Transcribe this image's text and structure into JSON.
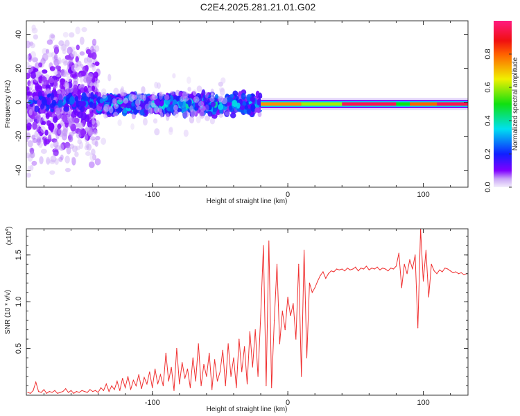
{
  "title": "C2E4.2025.281.21.01.G02",
  "chart_data": [
    {
      "type": "heatmap",
      "xlabel": "Height of straight line (km)",
      "ylabel": "Frequency (Hz)",
      "xlim": [
        -193,
        133
      ],
      "ylim": [
        -50,
        48
      ],
      "xticks": [
        -100,
        0,
        100
      ],
      "yticks": [
        -40,
        -20,
        0,
        20,
        40
      ],
      "colorbar": {
        "label": "Normalized spectral amplitude",
        "range": [
          0,
          1
        ],
        "ticks": [
          "0.0",
          "0.2",
          "0.4",
          "0.6",
          "0.8"
        ]
      },
      "regions": [
        {
          "x": [
            -193,
            -140
          ],
          "f_center": 0,
          "f_spread": 50,
          "amp": 0.1,
          "density": 700
        },
        {
          "x": [
            -190,
            -140
          ],
          "f_center": 0,
          "f_spread": 8,
          "amp": 0.22,
          "density": 160
        },
        {
          "x": [
            -140,
            -20
          ],
          "f_center": -1,
          "f_spread": 8,
          "amp": 0.3,
          "density": 900
        },
        {
          "x": [
            -140,
            -40
          ],
          "f_center": 0,
          "f_spread": 25,
          "amp": 0.05,
          "density": 80
        },
        {
          "x": [
            -20,
            133
          ],
          "f_center": -1,
          "f_spread": 1,
          "amp": 0.9,
          "density": 0
        }
      ],
      "ridge": {
        "freq": -1,
        "segments": [
          {
            "x": [
              -20,
              10
            ],
            "amp": 0.75
          },
          {
            "x": [
              10,
              40
            ],
            "amp": 0.6
          },
          {
            "x": [
              40,
              80
            ],
            "amp": 0.95
          },
          {
            "x": [
              80,
              90
            ],
            "amp": 0.5
          },
          {
            "x": [
              90,
              110
            ],
            "amp": 0.8
          },
          {
            "x": [
              110,
              133
            ],
            "amp": 0.95
          }
        ]
      }
    },
    {
      "type": "line",
      "xlabel": "Height of straight line (km)",
      "ylabel": "SNR (10 * v/v)",
      "y_multiplier": "(x10",
      "y_multiplier_exp": "4",
      "xlim": [
        -193,
        133
      ],
      "ylim": [
        0,
        1.78
      ],
      "xticks": [
        -100,
        0,
        100
      ],
      "yticks": [
        "0.5",
        "1.0",
        "1.5"
      ],
      "color": "#f03030",
      "x_start": -192,
      "x_step": 2,
      "values": [
        0.03,
        0.02,
        0.05,
        0.14,
        0.04,
        0.03,
        0.06,
        0.02,
        0.04,
        0.03,
        0.05,
        0.02,
        0.03,
        0.04,
        0.07,
        0.03,
        0.05,
        0.02,
        0.04,
        0.03,
        0.05,
        0.04,
        0.03,
        0.06,
        0.04,
        0.05,
        0.03,
        0.08,
        0.05,
        0.12,
        0.04,
        0.1,
        0.06,
        0.15,
        0.05,
        0.18,
        0.08,
        0.2,
        0.06,
        0.16,
        0.1,
        0.22,
        0.07,
        0.19,
        0.12,
        0.25,
        0.08,
        0.28,
        0.12,
        0.22,
        0.1,
        0.45,
        0.15,
        0.3,
        0.05,
        0.5,
        0.12,
        0.35,
        0.18,
        0.28,
        0.08,
        0.4,
        0.15,
        0.55,
        0.1,
        0.33,
        0.2,
        0.45,
        0.06,
        0.38,
        0.15,
        0.25,
        0.48,
        0.1,
        0.55,
        0.2,
        0.4,
        0.08,
        0.6,
        0.25,
        0.52,
        0.12,
        0.68,
        0.3,
        0.7,
        0.2,
        0.85,
        1.6,
        0.1,
        1.65,
        0.08,
        0.8,
        1.4,
        0.55,
        0.9,
        0.7,
        1.05,
        0.85,
        0.98,
        0.6,
        1.4,
        0.2,
        1.55,
        0.4,
        1.2,
        1.1,
        1.15,
        1.22,
        1.28,
        1.32,
        1.25,
        1.3,
        1.33,
        1.32,
        1.35,
        1.34,
        1.35,
        1.33,
        1.36,
        1.34,
        1.35,
        1.37,
        1.33,
        1.36,
        1.35,
        1.38,
        1.34,
        1.36,
        1.35,
        1.37,
        1.34,
        1.36,
        1.35,
        1.33,
        1.36,
        1.35,
        1.38,
        1.52,
        1.15,
        1.4,
        1.3,
        1.45,
        1.35,
        1.5,
        0.72,
        1.78,
        1.22,
        1.55,
        1.05,
        1.4,
        1.33,
        1.3,
        1.34,
        1.32,
        1.36,
        1.35,
        1.33,
        1.31,
        1.32,
        1.3,
        1.31,
        1.29,
        1.3
      ]
    }
  ]
}
